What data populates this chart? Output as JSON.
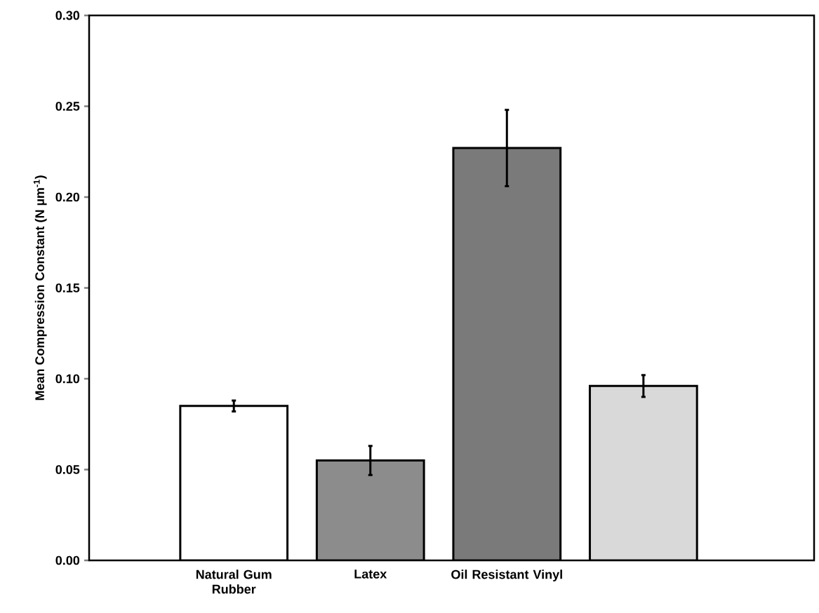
{
  "chart_data": {
    "type": "bar",
    "ylabel": "Mean Compression Constant (N µm$^{-1}$)",
    "categories": [
      "Natural Gum Rubber",
      "Latex",
      "Oil Resistant Vinyl",
      null
    ],
    "values": [
      0.085,
      0.055,
      0.227,
      0.096
    ],
    "errors": [
      0.003,
      0.008,
      0.021,
      0.006
    ],
    "colors": [
      "#ffffff",
      "#8c8c8c",
      "#7a7a7a",
      "#d9d9d9"
    ],
    "ylim": [
      0,
      0.3
    ],
    "yticks": [
      {
        "value": 0,
        "label": "0.00"
      },
      {
        "value": 0.05,
        "label": "0.05"
      },
      {
        "value": 0.1,
        "label": "0.10"
      },
      {
        "value": 0.15,
        "label": "0.15"
      },
      {
        "value": 0.2,
        "label": "0.20"
      },
      {
        "value": 0.25,
        "label": "0.25"
      },
      {
        "value": 0.3,
        "label": "0.30"
      }
    ]
  }
}
